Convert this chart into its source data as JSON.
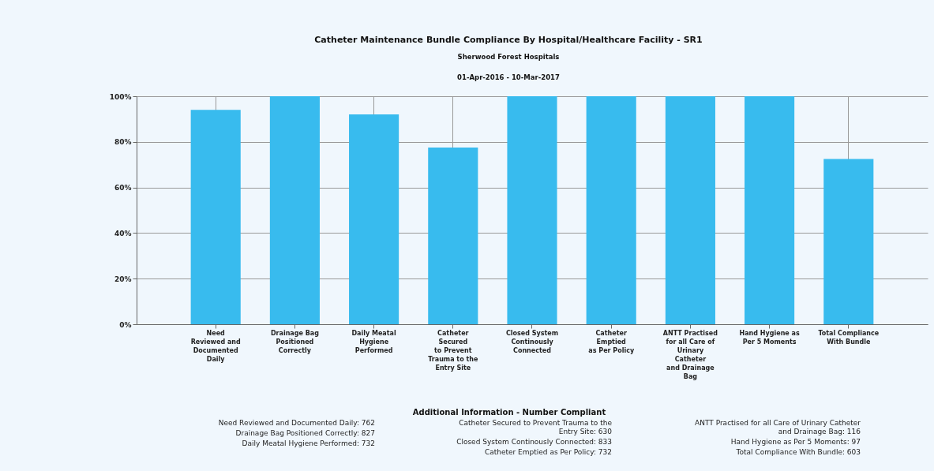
{
  "chart_data": {
    "type": "bar",
    "title": "Catheter Maintenance Bundle Compliance By Hospital/Healthcare Facility - SR1",
    "subtitle": "Sherwood Forest Hospitals\n01-Apr-2016 - 10-Mar-2017",
    "categories": [
      "Need\nReviewed and\nDocumented\nDaily",
      "Drainage Bag\nPositioned\nCorrectly",
      "Daily Meatal\nHygiene\nPerformed",
      "Catheter\nSecured\nto Prevent\nTrauma to the\nEntry Site",
      "Closed System\nContinously\nConnected",
      "Catheter\nEmptied\nas Per Policy",
      "ANTT Practised\nfor all Care of\nUrinary\nCatheter\nand Drainage\nBag",
      "Hand Hygiene as\nPer 5 Moments",
      "Total Compliance\nWith Bundle"
    ],
    "values": [
      94,
      100,
      92,
      77.5,
      100,
      100,
      100,
      100,
      72.5
    ],
    "color": "#38bbee",
    "ylim": [
      0,
      100
    ],
    "yticks": [
      {
        "value": 0,
        "label": "0%"
      },
      {
        "value": 20,
        "label": "20%"
      },
      {
        "value": 40,
        "label": "40%"
      },
      {
        "value": 60,
        "label": "60%"
      },
      {
        "value": 80,
        "label": "80%"
      },
      {
        "value": 100,
        "label": "100%"
      }
    ],
    "grid": true,
    "annotations": [
      "Additional Information - Number Compliant",
      "Need Reviewed and Documented Daily:  762",
      "Drainage Bag Positioned Correctly:  827",
      "Daily Meatal Hygiene Performed:  732",
      "Catheter Secured to Prevent Trauma to the\nEntry Site:  630",
      "Closed System Continously Connected:  833",
      "Catheter Emptied as Per Policy:  732",
      "ANTT Practised for all Care of Urinary Catheter\nand Drainage Bag:  116",
      "Hand Hygiene as Per 5 Moments:  97",
      "Total Compliance With Bundle:  603"
    ]
  }
}
